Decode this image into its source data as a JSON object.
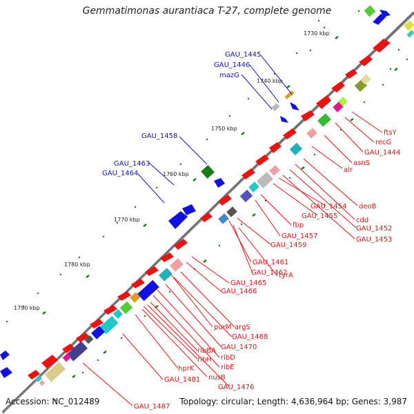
{
  "title": "Gemmatimonas aurantiaca T-27, complete genome",
  "accession": "Accession: NC_012489",
  "topology": "Topology: circular; Length: 4,636,964 bp; Genes: 3,987",
  "colors": {
    "backbone": "#707070",
    "tick": "#1a7a1a",
    "forward_label": "#1010cc",
    "reverse_label": "#ee1111"
  },
  "kbp_ticks": [
    "1730 kbp",
    "1740 kbp",
    "1750 kbp",
    "1760 kbp",
    "1770 kbp",
    "1780 kbp",
    "1790 kbp"
  ],
  "forward_genes": [
    "GAU_1445",
    "GAU_1446",
    "mazG",
    "GAU_1458",
    "GAU_1463",
    "GAU_1464"
  ],
  "reverse_genes": [
    "ftsY",
    "recG",
    "GAU_1444",
    "asnS",
    "alr",
    "deoB",
    "cdd",
    "GAU_1452",
    "GAU_1453",
    "GAU_1454",
    "GAU_1455",
    "fbp",
    "GAU_1457",
    "GAU_1459",
    "GAU_1461",
    "GAU_1462",
    "tyrA",
    "GAU_1465",
    "GAU_1466",
    "purM",
    "argS",
    "GAU_1468",
    "GAU_1470",
    "ribD",
    "ribE",
    "ribBA",
    "ribH",
    "hprK",
    "nusB",
    "GAU_1476",
    "GAU_1481",
    "GAU_1487"
  ]
}
